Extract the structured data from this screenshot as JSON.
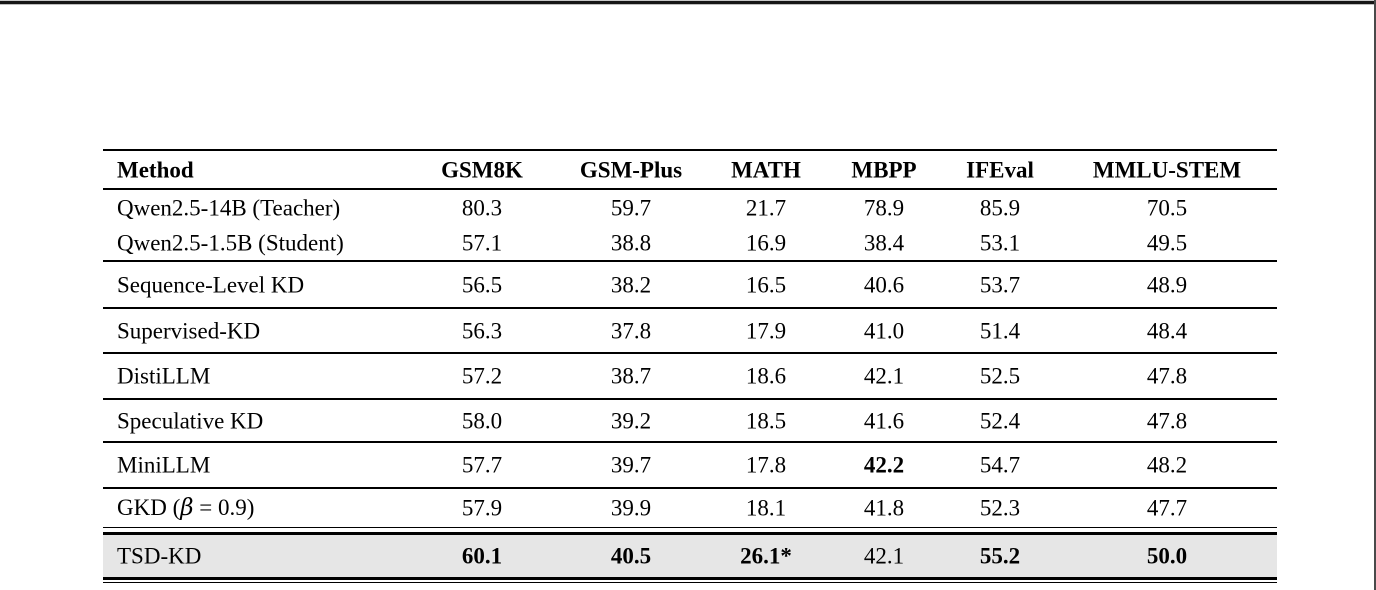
{
  "page": {
    "background": "#ffffff",
    "top_border_color": "#161616",
    "right_border_color": "#4a4a4a",
    "rule_color": "#000000",
    "highlight_row_color": "#e6e6e6"
  },
  "table": {
    "headers": [
      "Method",
      "GSM8K",
      "GSM-Plus",
      "MATH",
      "MBPP",
      "IFEval",
      "MMLU-STEM"
    ],
    "rows": [
      {
        "method": "Qwen2.5-14B (Teacher)",
        "values": [
          "80.3",
          "59.7",
          "21.7",
          "78.9",
          "85.9",
          "70.5"
        ]
      },
      {
        "method": "Qwen2.5-1.5B (Student)",
        "values": [
          "57.1",
          "38.8",
          "16.9",
          "38.4",
          "53.1",
          "49.5"
        ]
      },
      {
        "method": "Sequence-Level KD",
        "values": [
          "56.5",
          "38.2",
          "16.5",
          "40.6",
          "53.7",
          "48.9"
        ]
      },
      {
        "method": "Supervised-KD",
        "values": [
          "56.3",
          "37.8",
          "17.9",
          "41.0",
          "51.4",
          "48.4"
        ]
      },
      {
        "method": "DistiLLM",
        "values": [
          "57.2",
          "38.7",
          "18.6",
          "42.1",
          "52.5",
          "47.8"
        ]
      },
      {
        "method": "Speculative KD",
        "values": [
          "58.0",
          "39.2",
          "18.5",
          "41.6",
          "52.4",
          "47.8"
        ]
      },
      {
        "method": "MiniLLM",
        "values": [
          "57.7",
          "39.7",
          "17.8",
          "42.2",
          "54.7",
          "48.2"
        ],
        "bold_values": [
          3
        ]
      },
      {
        "method": "GKD (β = 0.9)",
        "method_parts": [
          "GKD (",
          "β",
          " = 0.9)"
        ],
        "values": [
          "57.9",
          "39.9",
          "18.1",
          "41.8",
          "52.3",
          "47.7"
        ]
      },
      {
        "method": "TSD-KD",
        "values": [
          "60.1",
          "40.5",
          "26.1*",
          "42.1",
          "55.2",
          "50.0"
        ],
        "bold_values": [
          0,
          1,
          2,
          4,
          5
        ],
        "highlight": true
      }
    ]
  }
}
